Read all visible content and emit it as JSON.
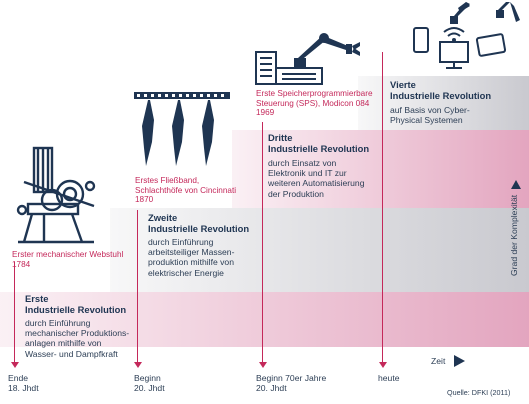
{
  "revolutions": [
    {
      "title_line1": "Erste",
      "title_line2": "Industrielle Revolution",
      "desc": [
        "durch Einführung",
        "mechanischer Produktions-",
        "anlagen mithilfe von",
        "Wasser- und Dampfkraft"
      ],
      "caption": [
        "Erster mechanischer Webstuhl",
        "1784"
      ],
      "era": [
        "Ende",
        "18. Jhdt"
      ]
    },
    {
      "title_line1": "Zweite",
      "title_line2": "Industrielle Revolution",
      "desc": [
        "durch Einführung",
        "arbeitsteiliger Massen-",
        "produktion mithilfe von",
        "elektrischer Energie"
      ],
      "caption": [
        "Erstes Fließband,",
        "Schlachthöfe von Cincinnati",
        "1870"
      ],
      "era": [
        "Beginn",
        "20. Jhdt"
      ]
    },
    {
      "title_line1": "Dritte",
      "title_line2": "Industrielle Revolution",
      "desc": [
        "durch Einsatz von",
        "Elektronik und IT zur",
        "weiteren Automatisierung",
        "der Produktion"
      ],
      "caption": [
        "Erste Speicherprogrammierbare",
        "Steuerung (SPS), Modicon 084",
        "1969"
      ],
      "era": [
        "Beginn 70er Jahre",
        "20. Jhdt"
      ]
    },
    {
      "title_line1": "Vierte",
      "title_line2": "Industrielle Revolution",
      "desc": [
        "auf Basis von Cyber-",
        "Physical Systemen"
      ],
      "caption": [],
      "era": [
        "heute"
      ]
    }
  ],
  "axis": {
    "y_label": "Grad der Komplexität",
    "x_label": "Zeit"
  },
  "source": "Quelle: DFKI (2011)",
  "icons": [
    "loom-icon",
    "carcass-icon",
    "plc-robot-icon",
    "robot-devices-icon"
  ],
  "colors": {
    "pink": "#e3a5bf",
    "grey": "#c9c9cf",
    "accent": "#c4285a",
    "text": "#1f3552"
  }
}
